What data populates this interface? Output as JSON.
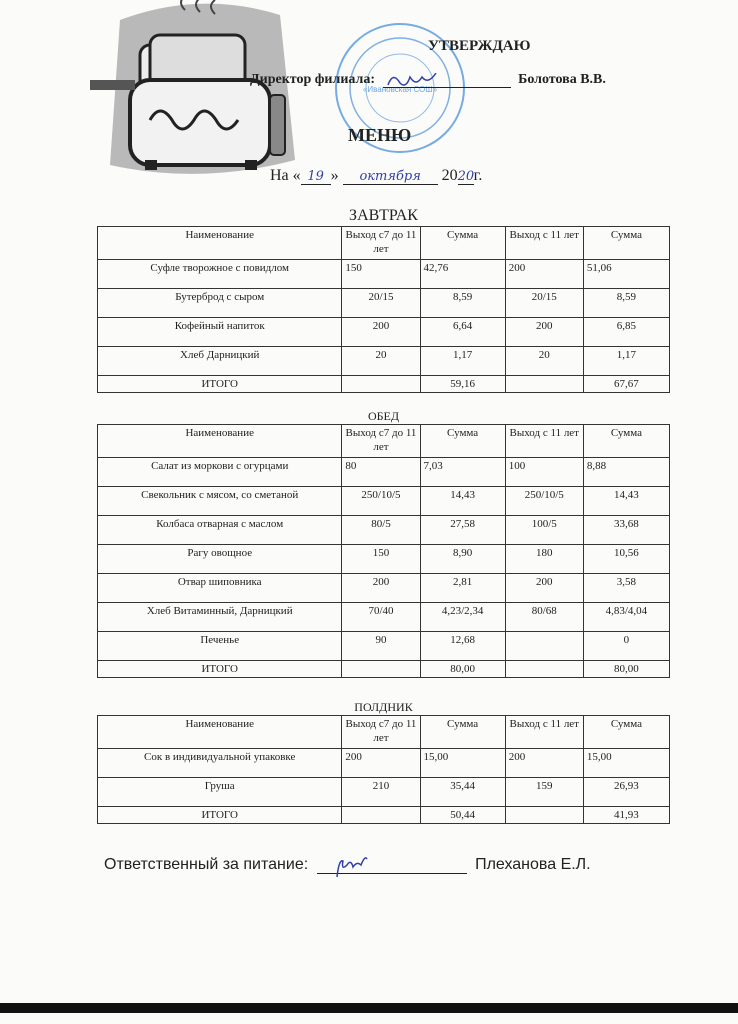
{
  "header": {
    "approve": "УТВЕРЖДАЮ",
    "director_label": "Директор филиала:",
    "director_name": "Болотова В.В.",
    "title": "МЕНЮ",
    "date_prefix": "На «",
    "date_day": "19",
    "date_mid": "»",
    "date_month": "октября",
    "date_year_prefix": "20",
    "date_year": "20",
    "date_suffix": "г."
  },
  "columns": [
    "Наименование",
    "Выход с7 до 11 лет",
    "Сумма",
    "Выход с 11 лет",
    "Сумма"
  ],
  "sections": [
    {
      "title": "ЗАВТРАК",
      "rows": [
        [
          "Суфле творожное с повидлом",
          "150",
          "42,76",
          "200",
          "51,06"
        ],
        [
          "Бутерброд с сыром",
          "20/15",
          "8,59",
          "20/15",
          "8,59"
        ],
        [
          "Кофейный напиток",
          "200",
          "6,64",
          "200",
          "6,85"
        ],
        [
          "Хлеб Дарницкий",
          "20",
          "1,17",
          "20",
          "1,17"
        ]
      ],
      "total": [
        "ИТОГО",
        "",
        "59,16",
        "",
        "67,67"
      ]
    },
    {
      "title": "ОБЕД",
      "rows": [
        [
          "Салат из моркови с огурцами",
          "80",
          "7,03",
          "100",
          "8,88"
        ],
        [
          "Свекольник с мясом, со сметаной",
          "250/10/5",
          "14,43",
          "250/10/5",
          "14,43"
        ],
        [
          "Колбаса отварная с маслом",
          "80/5",
          "27,58",
          "100/5",
          "33,68"
        ],
        [
          "Рагу овощное",
          "150",
          "8,90",
          "180",
          "10,56"
        ],
        [
          "Отвар шиповника",
          "200",
          "2,81",
          "200",
          "3,58"
        ],
        [
          "Хлеб Витаминный, Дарницкий",
          "70/40",
          "4,23/2,34",
          "80/68",
          "4,83/4,04"
        ],
        [
          "Печенье",
          "90",
          "12,68",
          "",
          "0"
        ]
      ],
      "total": [
        "ИТОГО",
        "",
        "80,00",
        "",
        "80,00"
      ]
    },
    {
      "title": "ПОЛДНИК",
      "rows": [
        [
          "Сок в индивидуальной упаковке",
          "200",
          "15,00",
          "200",
          "15,00"
        ],
        [
          "Груша",
          "210",
          "35,44",
          "159",
          "26,93"
        ]
      ],
      "total": [
        "ИТОГО",
        "",
        "50,44",
        "",
        "41,93"
      ]
    }
  ],
  "footer": {
    "responsible_label": "Ответственный за питание:",
    "responsible_name": "Плеханова Е.Л."
  },
  "colors": {
    "ink": "#222222",
    "stamp": "#4a90d9",
    "signature": "#3240a8"
  }
}
